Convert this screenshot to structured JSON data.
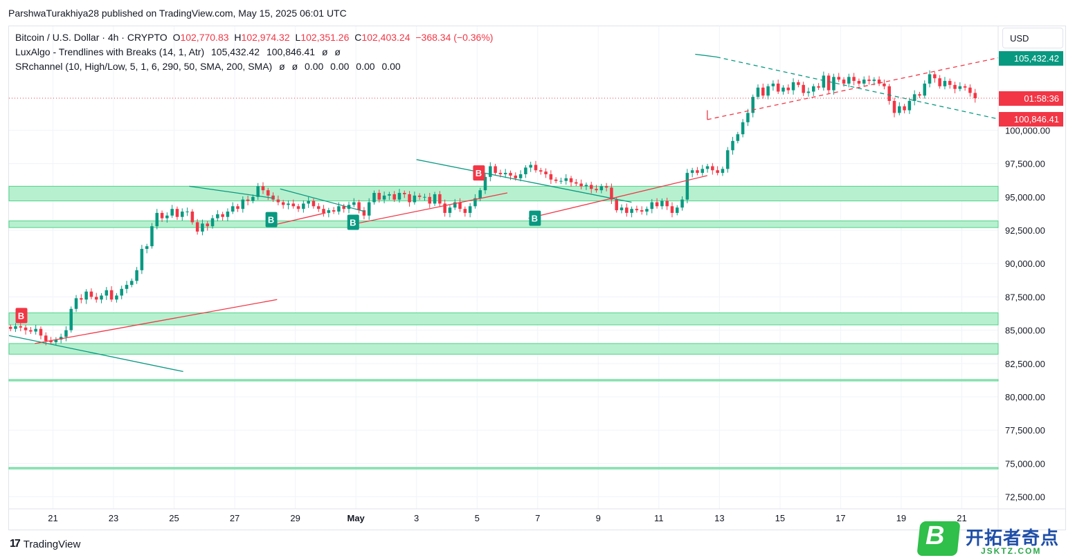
{
  "header": {
    "publisher_line": "ParshwaTurakhiya28 published on TradingView.com, May 15, 2025 06:01 UTC"
  },
  "legend": {
    "symbol": "Bitcoin / U.S. Dollar · 4h · CRYPTO",
    "o_label": "O",
    "o_value": "102,770.83",
    "h_label": "H",
    "h_value": "102,974.32",
    "l_label": "L",
    "l_value": "102,351.26",
    "c_label": "C",
    "c_value": "102,403.24",
    "change": "−368.34 (−0.36%)",
    "ind1_name": "LuxAlgo - Trendlines with Breaks (14, 1, Atr)",
    "ind1_upper": "105,432.42",
    "ind1_lower": "100,846.41",
    "ind1_na1": "ø",
    "ind1_na2": "ø",
    "ind2_name": "SRchannel (10, High/Low, 5, 1, 6, 290, 50, SMA, 200, SMA)",
    "ind2_na1": "ø",
    "ind2_na2": "ø",
    "ind2_v1": "0.00",
    "ind2_v2": "0.00",
    "ind2_v3": "0.00",
    "ind2_v4": "0.00"
  },
  "price_scale": {
    "currency": "USD",
    "tag_upper": "105,432.42",
    "tag_countdown": "01:58:36",
    "tag_lower": "100,846.41"
  },
  "colors": {
    "up": "#089981",
    "down": "#f23645",
    "zone_fill": "#b7f0cf",
    "zone_line": "#4fd389",
    "resistance_line": "#089981",
    "support_line": "#f23645"
  },
  "footer": {
    "brand": "TradingView"
  },
  "watermark": {
    "badge": "B",
    "cn": "开拓者奇点",
    "en": "JSKTZ.COM"
  },
  "chart_data": {
    "type": "candlestick",
    "timeframe": "4h",
    "yticks": [
      72500,
      75000,
      77500,
      80000,
      82500,
      85000,
      87500,
      90000,
      92500,
      95000,
      97500,
      100000
    ],
    "ytick_labels": [
      "72,500.00",
      "75,000.00",
      "77,500.00",
      "80,000.00",
      "82,500.00",
      "85,000.00",
      "87,500.00",
      "90,000.00",
      "92,500.00",
      "95,000.00",
      "97,500.00",
      "100,000.00"
    ],
    "ylim": [
      71600,
      107800
    ],
    "xlim_day": [
      19.55,
      52.2
    ],
    "xticks": [
      {
        "day": 21,
        "label": "21"
      },
      {
        "day": 23,
        "label": "23"
      },
      {
        "day": 25,
        "label": "25"
      },
      {
        "day": 27,
        "label": "27"
      },
      {
        "day": 29,
        "label": "29"
      },
      {
        "day": 31,
        "label": "May"
      },
      {
        "day": 33,
        "label": "3"
      },
      {
        "day": 35,
        "label": "5"
      },
      {
        "day": 37,
        "label": "7"
      },
      {
        "day": 39,
        "label": "9"
      },
      {
        "day": 41,
        "label": "11"
      },
      {
        "day": 43,
        "label": "13"
      },
      {
        "day": 45,
        "label": "15"
      },
      {
        "day": 47,
        "label": "17"
      },
      {
        "day": 49,
        "label": "19"
      },
      {
        "day": 51,
        "label": "21"
      }
    ],
    "candles_start_day": 19.6,
    "candle_interval_days": 0.1667,
    "closes": [
      85100,
      85300,
      85200,
      85000,
      84900,
      85100,
      84600,
      84200,
      84100,
      84300,
      84500,
      85000,
      86600,
      87400,
      87300,
      87900,
      87500,
      87300,
      87600,
      88000,
      87300,
      87600,
      88100,
      88400,
      88700,
      89500,
      91100,
      91300,
      92800,
      93800,
      93400,
      93600,
      94100,
      93500,
      93900,
      93900,
      93100,
      92400,
      93000,
      92800,
      93400,
      93700,
      93500,
      93900,
      94300,
      94100,
      94800,
      94700,
      95000,
      95800,
      95500,
      95100,
      94800,
      94600,
      94400,
      94500,
      94300,
      94100,
      94500,
      94700,
      94300,
      94100,
      93800,
      94000,
      93900,
      94300,
      94100,
      94400,
      94600,
      94000,
      93600,
      94600,
      95300,
      94800,
      95100,
      95200,
      94800,
      95300,
      95200,
      94600,
      95100,
      95000,
      95000,
      94500,
      95200,
      94500,
      93800,
      94200,
      94600,
      94100,
      93800,
      94300,
      94900,
      95500,
      96500,
      97300,
      96800,
      96700,
      96800,
      96600,
      96400,
      96700,
      97200,
      97400,
      97000,
      96900,
      96700,
      96300,
      96200,
      96200,
      96400,
      96100,
      96000,
      95800,
      95900,
      95600,
      95500,
      95800,
      95700,
      94800,
      94000,
      94200,
      93800,
      94100,
      94000,
      93900,
      94100,
      94600,
      94300,
      94700,
      94300,
      93800,
      94200,
      94800,
      96800,
      97000,
      96800,
      97100,
      97300,
      97000,
      96800,
      97100,
      98500,
      99200,
      99700,
      100600,
      101300,
      102500,
      103200,
      102600,
      103300,
      103500,
      102900,
      103200,
      103000,
      103600,
      103400,
      102800,
      102900,
      103300,
      103200,
      104100,
      103000,
      104000,
      103800,
      103500,
      104000,
      103700,
      103500,
      103800,
      103700,
      103800,
      103500,
      103300,
      102200,
      101300,
      101800,
      101500,
      102200,
      102700,
      102600,
      103500,
      104200,
      103900,
      103300,
      103700,
      103400,
      103100,
      103300,
      103200,
      102800,
      102403
    ],
    "sr_zones": [
      {
        "low": 94700,
        "high": 95800
      },
      {
        "low": 92700,
        "high": 93200
      },
      {
        "low": 85400,
        "high": 86300
      },
      {
        "low": 83200,
        "high": 84000
      },
      {
        "low": 81200,
        "high": 81300
      },
      {
        "low": 74600,
        "high": 74700
      }
    ],
    "trendlines": [
      {
        "kind": "resistance",
        "x1": 19.55,
        "y1": 84600,
        "x2": 25.3,
        "y2": 81900
      },
      {
        "kind": "support",
        "x1": 20.4,
        "y1": 84000,
        "x2": 28.4,
        "y2": 87300
      },
      {
        "kind": "resistance",
        "x1": 25.5,
        "y1": 95800,
        "x2": 28.3,
        "y2": 94900
      },
      {
        "kind": "support",
        "x1": 28.3,
        "y1": 92900,
        "x2": 30.0,
        "y2": 93800
      },
      {
        "kind": "resistance",
        "x1": 28.5,
        "y1": 95600,
        "x2": 31.3,
        "y2": 93900
      },
      {
        "kind": "support",
        "x1": 30.8,
        "y1": 92900,
        "x2": 36.0,
        "y2": 95300
      },
      {
        "kind": "resistance",
        "x1": 33.0,
        "y1": 97800,
        "x2": 40.1,
        "y2": 94600
      },
      {
        "kind": "support",
        "x1": 36.7,
        "y1": 93400,
        "x2": 42.6,
        "y2": 96600
      },
      {
        "kind": "resistance",
        "x1": 42.2,
        "y1": 105700,
        "x2": 42.9,
        "y2": 105500
      },
      {
        "kind": "resistance_projection",
        "x1": 42.9,
        "y1": 105500,
        "x2": 52.2,
        "y2": 100846.41
      },
      {
        "kind": "support",
        "x1": 42.6,
        "y1": 100800,
        "x2": 42.6,
        "y2": 101500
      },
      {
        "kind": "support_projection",
        "x1": 42.6,
        "y1": 100800,
        "x2": 52.2,
        "y2": 105432.42
      }
    ],
    "current_price": 102403.24,
    "break_labels": [
      {
        "day": 19.95,
        "price": 86100,
        "text": "B",
        "side": "bearish"
      },
      {
        "day": 28.2,
        "price": 93300,
        "text": "B",
        "side": "bullish"
      },
      {
        "day": 30.9,
        "price": 93100,
        "text": "B",
        "side": "bullish"
      },
      {
        "day": 35.05,
        "price": 96800,
        "text": "B",
        "side": "bearish"
      },
      {
        "day": 36.9,
        "price": 93400,
        "text": "B",
        "side": "bullish"
      }
    ]
  }
}
